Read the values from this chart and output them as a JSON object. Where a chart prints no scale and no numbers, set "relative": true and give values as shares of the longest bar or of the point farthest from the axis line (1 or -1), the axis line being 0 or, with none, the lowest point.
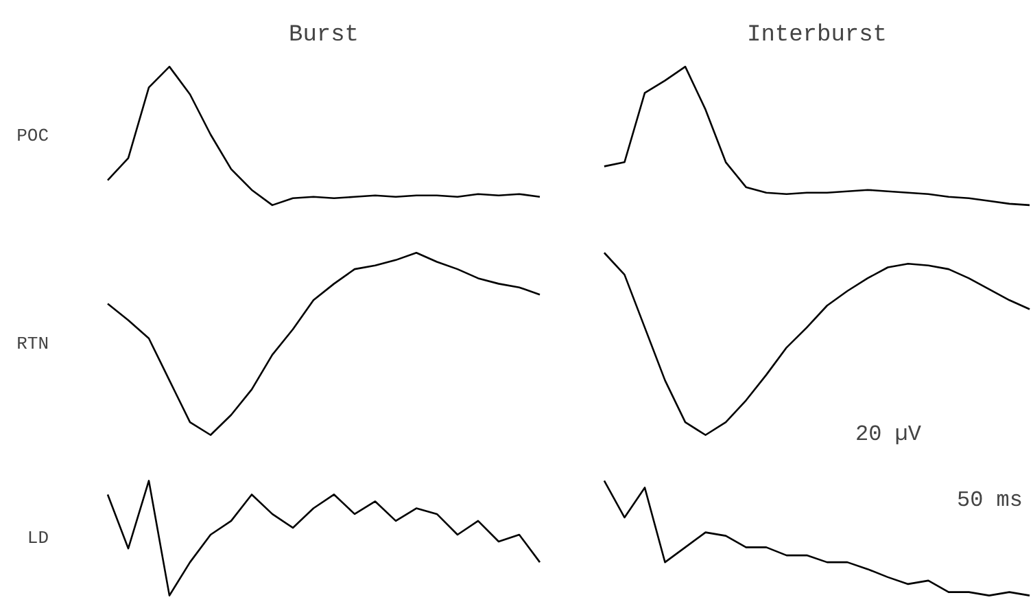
{
  "chart_data": [
    {
      "type": "line",
      "title": "Burst",
      "ylabel": "POC",
      "relative": true,
      "categories": [
        null,
        null,
        null,
        null,
        null,
        null,
        null,
        null,
        null,
        null,
        null,
        null,
        null,
        null,
        null,
        null,
        null,
        null,
        null,
        null,
        null,
        null
      ],
      "series": [
        {
          "color": "#000000",
          "values": [
            0.18,
            0.34,
            0.85,
            1,
            0.8,
            0.51,
            0.26,
            0.11,
            0,
            0.05,
            0.06,
            0.05,
            0.06,
            0.07,
            0.06,
            0.07,
            0.07,
            0.06,
            0.08,
            0.07,
            0.08,
            0.06
          ]
        }
      ]
    },
    {
      "type": "line",
      "title": "Interburst",
      "relative": true,
      "categories": [
        null,
        null,
        null,
        null,
        null,
        null,
        null,
        null,
        null,
        null,
        null,
        null,
        null,
        null,
        null,
        null,
        null,
        null,
        null,
        null,
        null,
        null
      ],
      "series": [
        {
          "color": "#000000",
          "values": [
            0.28,
            0.31,
            0.81,
            0.9,
            1,
            0.69,
            0.31,
            0.13,
            0.09,
            0.08,
            0.09,
            0.09,
            0.1,
            0.11,
            0.1,
            0.09,
            0.08,
            0.06,
            0.05,
            0.03,
            0.01,
            0
          ]
        }
      ]
    },
    {
      "type": "line",
      "ylabel": "RTN",
      "relative": true,
      "categories": [
        null,
        null,
        null,
        null,
        null,
        null,
        null,
        null,
        null,
        null,
        null,
        null,
        null,
        null,
        null,
        null,
        null,
        null,
        null,
        null,
        null,
        null
      ],
      "series": [
        {
          "color": "#000000",
          "values": [
            0.72,
            0.63,
            0.53,
            0.3,
            0.07,
            0,
            0.11,
            0.25,
            0.44,
            0.58,
            0.74,
            0.83,
            0.91,
            0.93,
            0.96,
            1,
            0.95,
            0.91,
            0.86,
            0.83,
            0.81,
            0.77
          ]
        }
      ]
    },
    {
      "type": "line",
      "relative": true,
      "annotations": [
        "20 µV"
      ],
      "categories": [
        null,
        null,
        null,
        null,
        null,
        null,
        null,
        null,
        null,
        null,
        null,
        null,
        null,
        null,
        null,
        null,
        null,
        null,
        null,
        null,
        null,
        null
      ],
      "series": [
        {
          "color": "#000000",
          "values": [
            1,
            0.88,
            0.59,
            0.3,
            0.07,
            0,
            0.07,
            0.19,
            0.33,
            0.48,
            0.59,
            0.71,
            0.79,
            0.86,
            0.92,
            0.94,
            0.93,
            0.91,
            0.86,
            0.8,
            0.74,
            0.69
          ]
        }
      ]
    },
    {
      "type": "line",
      "ylabel": "LD",
      "relative": true,
      "categories": [
        null,
        null,
        null,
        null,
        null,
        null,
        null,
        null,
        null,
        null,
        null,
        null,
        null,
        null,
        null,
        null,
        null,
        null,
        null,
        null,
        null,
        null
      ],
      "series": [
        {
          "color": "#000000",
          "values": [
            0.88,
            0.41,
            1,
            0,
            0.29,
            0.53,
            0.65,
            0.88,
            0.71,
            0.59,
            0.76,
            0.88,
            0.71,
            0.82,
            0.65,
            0.76,
            0.71,
            0.53,
            0.65,
            0.47,
            0.53,
            0.29
          ]
        }
      ]
    },
    {
      "type": "line",
      "relative": true,
      "annotations": [
        "50 ms"
      ],
      "categories": [
        null,
        null,
        null,
        null,
        null,
        null,
        null,
        null,
        null,
        null,
        null,
        null,
        null,
        null,
        null,
        null,
        null,
        null,
        null,
        null,
        null,
        null
      ],
      "series": [
        {
          "color": "#000000",
          "values": [
            1,
            0.68,
            0.94,
            0.29,
            0.42,
            0.55,
            0.52,
            0.42,
            0.42,
            0.35,
            0.35,
            0.29,
            0.29,
            0.23,
            0.16,
            0.1,
            0.13,
            0.03,
            0.03,
            0,
            0.03,
            0
          ]
        }
      ]
    }
  ]
}
